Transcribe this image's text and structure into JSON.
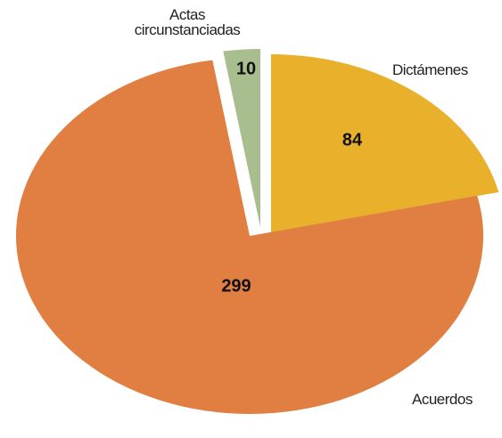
{
  "chart_data": {
    "type": "pie",
    "categories": [
      "Dictámenes",
      "Acuerdos",
      "Actas circunstanciadas"
    ],
    "values": [
      84,
      299,
      10
    ],
    "colors": [
      "#e9b02c",
      "#e07f41",
      "#a9be8e"
    ]
  }
}
